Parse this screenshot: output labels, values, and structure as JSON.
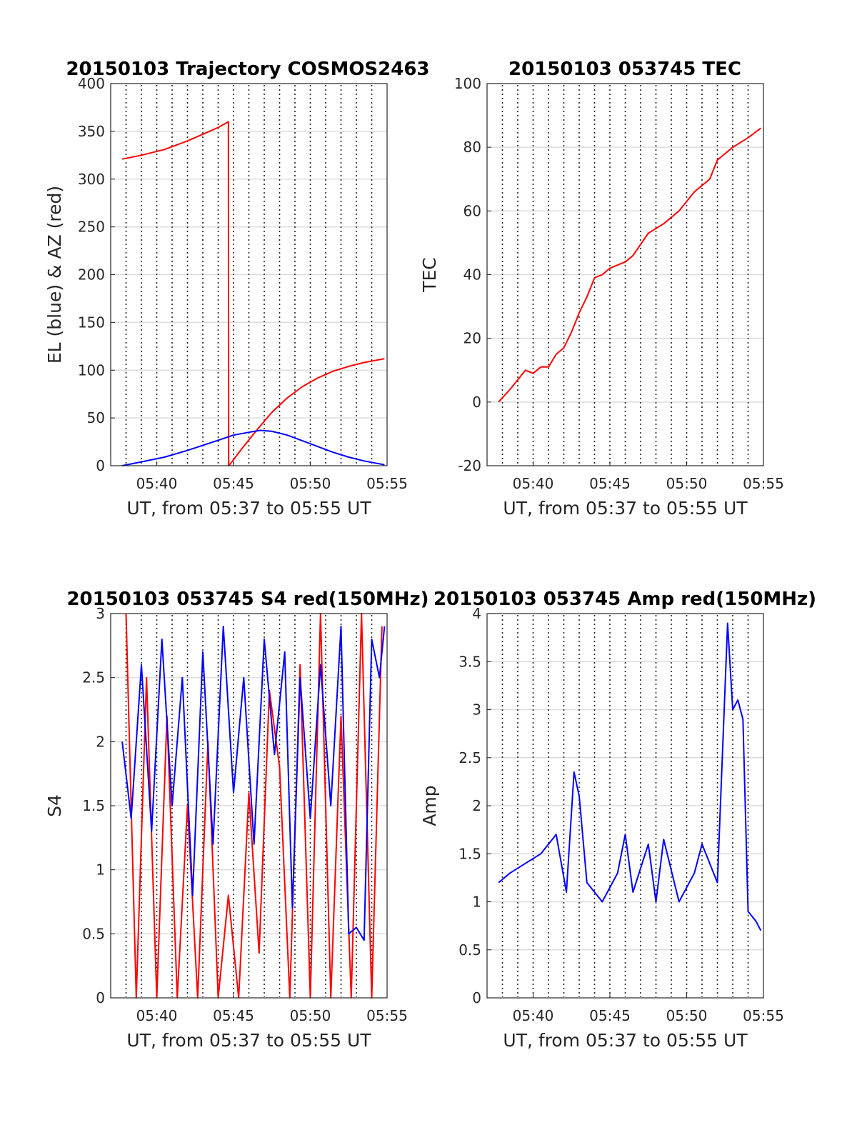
{
  "chart_data": [
    {
      "type": "line",
      "title": "20150103 Trajectory COSMOS2463",
      "xlabel": "UT, from 05:37 to 05:55 UT",
      "ylabel": "EL (blue) & AZ (red)",
      "xlim": [
        "05:37",
        "05:55"
      ],
      "ylim": [
        0,
        400
      ],
      "xticks": [
        "05:40",
        "05:45",
        "05:50",
        "05:55"
      ],
      "yticks": [
        "0",
        "50",
        "100",
        "150",
        "200",
        "250",
        "300",
        "350",
        "400"
      ],
      "grid": true,
      "series": [
        {
          "color": "#ff0000",
          "x": [
            "05:37:45",
            "05:39:00",
            "05:40:30",
            "05:42:00",
            "05:43:00",
            "05:44:00",
            "05:44:40",
            "05:44:41",
            "05:44:45",
            "05:45:30",
            "05:46:30",
            "05:47:30",
            "05:48:30",
            "05:49:30",
            "05:50:30",
            "05:51:30",
            "05:52:30",
            "05:53:30",
            "05:54:50"
          ],
          "values": [
            321,
            325,
            331,
            340,
            347,
            354,
            360,
            0,
            1,
            17,
            37,
            56,
            71,
            83,
            92,
            99,
            104,
            108,
            112
          ]
        },
        {
          "color": "#0000ff",
          "x": [
            "05:37:45",
            "05:39:00",
            "05:40:30",
            "05:42:00",
            "05:43:30",
            "05:45:00",
            "05:46:00",
            "05:46:45",
            "05:47:30",
            "05:48:30",
            "05:49:30",
            "05:50:30",
            "05:51:30",
            "05:52:30",
            "05:53:30",
            "05:54:50"
          ],
          "values": [
            0,
            4,
            9,
            16,
            24,
            32,
            35,
            37,
            36,
            32,
            26,
            20,
            14,
            9,
            5,
            1
          ]
        }
      ]
    },
    {
      "type": "line",
      "title": "20150103 053745 TEC",
      "xlabel": "UT, from 05:37 to 05:55 UT",
      "ylabel": "TEC",
      "xlim": [
        "05:37",
        "05:55"
      ],
      "ylim": [
        -20,
        100
      ],
      "xticks": [
        "05:40",
        "05:45",
        "05:50",
        "05:55"
      ],
      "yticks": [
        "-20",
        "0",
        "20",
        "40",
        "60",
        "80",
        "100"
      ],
      "grid": true,
      "series": [
        {
          "color": "#ff0000",
          "x": [
            "05:37:45",
            "05:38:30",
            "05:39:30",
            "05:40:00",
            "05:40:30",
            "05:41:00",
            "05:41:30",
            "05:42:00",
            "05:42:30",
            "05:43:00",
            "05:43:30",
            "05:44:00",
            "05:44:30",
            "05:45:00",
            "05:45:30",
            "05:46:00",
            "05:46:30",
            "05:47:30",
            "05:48:30",
            "05:49:30",
            "05:50:30",
            "05:51:00",
            "05:51:30",
            "05:52:00",
            "05:52:30",
            "05:53:00",
            "05:54:00",
            "05:54:50"
          ],
          "values": [
            0,
            4,
            10,
            9,
            11,
            11,
            15,
            17,
            22,
            28,
            33,
            39,
            40,
            42,
            43,
            44,
            46,
            53,
            56,
            60,
            66,
            68,
            70,
            76,
            78,
            80,
            83,
            86
          ]
        }
      ]
    },
    {
      "type": "line",
      "title": "20150103 053745 S4 red(150MHz)",
      "xlabel": "UT, from 05:37 to 05:55 UT",
      "ylabel": "S4",
      "xlim": [
        "05:37",
        "05:55"
      ],
      "ylim": [
        0,
        3
      ],
      "xticks": [
        "05:40",
        "05:45",
        "05:50",
        "05:55"
      ],
      "yticks": [
        "0",
        "0.5",
        "1",
        "1.5",
        "2",
        "2.5",
        "3"
      ],
      "grid": true,
      "series": [
        {
          "color": "#ff0000",
          "x": [
            "05:38:00",
            "05:38:40",
            "05:39:20",
            "05:40:00",
            "05:40:40",
            "05:41:20",
            "05:42:00",
            "05:42:40",
            "05:43:20",
            "05:44:00",
            "05:44:40",
            "05:45:20",
            "05:46:00",
            "05:46:40",
            "05:47:20",
            "05:48:00",
            "05:48:40",
            "05:49:20",
            "05:50:00",
            "05:50:40",
            "05:51:20",
            "05:52:00",
            "05:52:40",
            "05:53:20",
            "05:54:00",
            "05:54:40"
          ],
          "values": [
            3,
            0,
            2.5,
            0,
            2.2,
            0,
            1.5,
            0,
            2,
            0,
            0.8,
            0,
            1.6,
            0.35,
            2.4,
            1.8,
            0,
            2.6,
            0,
            3,
            0,
            2.2,
            0,
            3,
            0,
            2.9
          ]
        },
        {
          "color": "#0000ff",
          "x": [
            "05:37:45",
            "05:38:20",
            "05:39:00",
            "05:39:40",
            "05:40:20",
            "05:41:00",
            "05:41:40",
            "05:42:20",
            "05:43:00",
            "05:43:40",
            "05:44:20",
            "05:45:00",
            "05:45:40",
            "05:46:20",
            "05:47:00",
            "05:47:40",
            "05:48:20",
            "05:48:50",
            "05:49:20",
            "05:50:00",
            "05:50:40",
            "05:51:20",
            "05:52:00",
            "05:52:30",
            "05:53:00",
            "05:53:30",
            "05:54:00",
            "05:54:30",
            "05:54:50"
          ],
          "values": [
            2.0,
            1.4,
            2.6,
            1.3,
            2.8,
            1.5,
            2.5,
            0.8,
            2.7,
            1.2,
            2.9,
            1.6,
            2.5,
            1.2,
            2.8,
            1.9,
            2.7,
            0.7,
            2.5,
            1.4,
            2.6,
            1.5,
            2.9,
            0.5,
            0.55,
            0.45,
            2.8,
            2.5,
            2.9
          ]
        }
      ]
    },
    {
      "type": "line",
      "title": "20150103 053745 Amp red(150MHz)",
      "xlabel": "UT, from 05:37 to 05:55 UT",
      "ylabel": "Amp",
      "xlim": [
        "05:37",
        "05:55"
      ],
      "ylim": [
        0,
        4
      ],
      "xticks": [
        "05:40",
        "05:45",
        "05:50",
        "05:55"
      ],
      "yticks": [
        "0",
        "0.5",
        "1",
        "1.5",
        "2",
        "2.5",
        "3",
        "3.5",
        "4"
      ],
      "grid": true,
      "series": [
        {
          "color": "#0000ff",
          "x": [
            "05:37:45",
            "05:38:30",
            "05:39:30",
            "05:40:30",
            "05:41:30",
            "05:42:10",
            "05:42:40",
            "05:43:00",
            "05:43:30",
            "05:44:30",
            "05:45:30",
            "05:46:00",
            "05:46:30",
            "05:47:30",
            "05:48:00",
            "05:48:30",
            "05:49:30",
            "05:50:30",
            "05:51:00",
            "05:52:00",
            "05:52:40",
            "05:53:00",
            "05:53:20",
            "05:53:40",
            "05:54:00",
            "05:54:30",
            "05:54:50"
          ],
          "values": [
            1.2,
            1.3,
            1.4,
            1.5,
            1.7,
            1.1,
            2.35,
            2.1,
            1.2,
            1.0,
            1.3,
            1.7,
            1.1,
            1.6,
            1.0,
            1.65,
            1.0,
            1.3,
            1.6,
            1.2,
            3.9,
            3.0,
            3.1,
            2.9,
            0.9,
            0.8,
            0.7
          ]
        }
      ]
    }
  ]
}
